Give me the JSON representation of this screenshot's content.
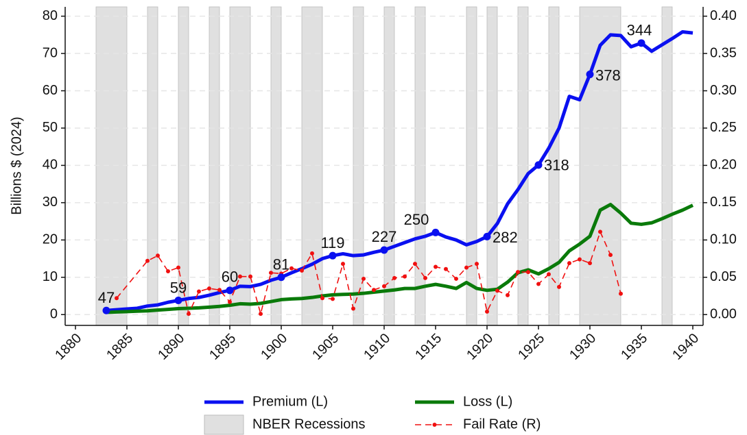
{
  "chart_data": {
    "type": "line",
    "ylabel": "Billions $ (2024)",
    "xlim": [
      1879,
      1941
    ],
    "xticks": [
      1880,
      1885,
      1890,
      1895,
      1900,
      1905,
      1910,
      1915,
      1920,
      1925,
      1930,
      1935,
      1940
    ],
    "ylim": [
      -2.9,
      82.5
    ],
    "yticks": [
      0,
      10,
      20,
      30,
      40,
      50,
      60,
      70,
      80
    ],
    "y2lim": [
      -0.0145,
      0.4125
    ],
    "y2ticks": [
      {
        "value": 0,
        "label": "0.00"
      },
      {
        "value": 0.05,
        "label": "0.05"
      },
      {
        "value": 0.1,
        "label": "0.10"
      },
      {
        "value": 0.15,
        "label": "0.15"
      },
      {
        "value": 0.2,
        "label": "0.20"
      },
      {
        "value": 0.25,
        "label": "0.25"
      },
      {
        "value": 0.3,
        "label": "0.30"
      },
      {
        "value": 0.35,
        "label": "0.35"
      },
      {
        "value": 0.4,
        "label": "0.40"
      }
    ],
    "grid": true,
    "recessions": {
      "name": "NBER Recessions",
      "color": "#e0e0e0",
      "periods": [
        [
          1882,
          1885
        ],
        [
          1887,
          1888
        ],
        [
          1890,
          1891
        ],
        [
          1893,
          1894
        ],
        [
          1895,
          1897
        ],
        [
          1899,
          1900
        ],
        [
          1902,
          1904
        ],
        [
          1907,
          1908
        ],
        [
          1910,
          1911
        ],
        [
          1913,
          1914
        ],
        [
          1918,
          1919
        ],
        [
          1920,
          1921
        ],
        [
          1923,
          1924
        ],
        [
          1926,
          1927
        ],
        [
          1929,
          1933
        ],
        [
          1937,
          1938
        ]
      ]
    },
    "series": [
      {
        "name": "Premium (L)",
        "color": "#0a10f0",
        "axis": "y",
        "x": [
          1883,
          1884,
          1885,
          1886,
          1887,
          1888,
          1889,
          1890,
          1891,
          1892,
          1893,
          1894,
          1895,
          1896,
          1897,
          1898,
          1899,
          1900,
          1901,
          1902,
          1903,
          1904,
          1905,
          1906,
          1907,
          1908,
          1909,
          1910,
          1911,
          1912,
          1913,
          1914,
          1915,
          1916,
          1917,
          1918,
          1919,
          1920,
          1921,
          1922,
          1923,
          1924,
          1925,
          1926,
          1927,
          1928,
          1929,
          1930,
          1931,
          1932,
          1933,
          1934,
          1935,
          1936,
          1937,
          1938,
          1939,
          1940
        ],
        "values": [
          1.1,
          1.3,
          1.5,
          1.7,
          2.3,
          2.6,
          3.3,
          3.8,
          4.3,
          4.6,
          5.2,
          5.9,
          6.5,
          7.6,
          7.5,
          8.1,
          9.2,
          10.0,
          11.2,
          12.3,
          13.5,
          15.0,
          15.8,
          16.3,
          15.8,
          16.0,
          16.7,
          17.3,
          18.3,
          19.3,
          20.3,
          21.0,
          22.0,
          20.8,
          20.0,
          18.7,
          19.6,
          20.9,
          24.4,
          29.7,
          33.5,
          37.8,
          40.1,
          44.6,
          50.0,
          58.5,
          57.6,
          64.4,
          72.2,
          75.0,
          74.8,
          71.8,
          72.8,
          70.6,
          72.3,
          74.0,
          75.8,
          75.5
        ]
      },
      {
        "name": "Loss (L)",
        "color": "#0a7a0a",
        "axis": "y",
        "x": [
          1883,
          1884,
          1885,
          1886,
          1887,
          1888,
          1889,
          1890,
          1891,
          1892,
          1893,
          1894,
          1895,
          1896,
          1897,
          1898,
          1899,
          1900,
          1901,
          1902,
          1903,
          1904,
          1905,
          1906,
          1907,
          1908,
          1909,
          1910,
          1911,
          1912,
          1913,
          1914,
          1915,
          1916,
          1917,
          1918,
          1919,
          1920,
          1921,
          1922,
          1923,
          1924,
          1925,
          1926,
          1927,
          1928,
          1929,
          1930,
          1931,
          1932,
          1933,
          1934,
          1935,
          1936,
          1937,
          1938,
          1939,
          1940
        ],
        "values": [
          0.6,
          0.7,
          0.8,
          0.9,
          1.0,
          1.2,
          1.4,
          1.6,
          1.7,
          1.8,
          2.0,
          2.2,
          2.5,
          2.9,
          2.8,
          3.0,
          3.5,
          4.0,
          4.2,
          4.3,
          4.6,
          5.0,
          5.3,
          5.4,
          5.5,
          5.7,
          6.0,
          6.3,
          6.6,
          7.0,
          7.0,
          7.6,
          8.1,
          7.6,
          7.0,
          8.6,
          7.0,
          6.5,
          6.8,
          8.7,
          11.2,
          12.0,
          10.9,
          12.3,
          14.0,
          17.1,
          18.9,
          21.0,
          28.0,
          29.5,
          27.2,
          24.5,
          24.2,
          24.6,
          25.7,
          26.9,
          28.0,
          29.3
        ]
      },
      {
        "name": "Fail Rate (R)",
        "color": "#f01010",
        "axis": "y2",
        "dashed": true,
        "x": [
          1884,
          1887,
          1888,
          1889,
          1890,
          1891,
          1892,
          1893,
          1894,
          1895,
          1896,
          1897,
          1898,
          1899,
          1900,
          1901,
          1902,
          1903,
          1904,
          1905,
          1906,
          1907,
          1908,
          1909,
          1910,
          1911,
          1912,
          1913,
          1914,
          1915,
          1916,
          1917,
          1918,
          1919,
          1920,
          1921,
          1922,
          1923,
          1924,
          1925,
          1926,
          1927,
          1928,
          1929,
          1930,
          1931,
          1932,
          1933
        ],
        "values": [
          0.022,
          0.072,
          0.079,
          0.058,
          0.063,
          0.001,
          0.031,
          0.035,
          0.033,
          0.017,
          0.051,
          0.051,
          0.001,
          0.056,
          0.055,
          0.062,
          0.059,
          0.082,
          0.022,
          0.021,
          0.068,
          0.008,
          0.048,
          0.033,
          0.038,
          0.049,
          0.051,
          0.068,
          0.049,
          0.064,
          0.061,
          0.048,
          0.063,
          0.068,
          0.004,
          0.032,
          0.026,
          0.057,
          0.057,
          0.041,
          0.054,
          0.037,
          0.069,
          0.074,
          0.069,
          0.111,
          0.08,
          0.028
        ]
      }
    ],
    "annotations": [
      {
        "x": 1883,
        "label": "47"
      },
      {
        "x": 1890,
        "label": "59"
      },
      {
        "x": 1895,
        "label": "60"
      },
      {
        "x": 1900,
        "label": "81"
      },
      {
        "x": 1905,
        "label": "119"
      },
      {
        "x": 1910,
        "label": "227"
      },
      {
        "x": 1915,
        "label": "250"
      },
      {
        "x": 1920,
        "label": "282"
      },
      {
        "x": 1925,
        "label": "318"
      },
      {
        "x": 1930,
        "label": "378"
      },
      {
        "x": 1935,
        "label": "344"
      }
    ]
  }
}
